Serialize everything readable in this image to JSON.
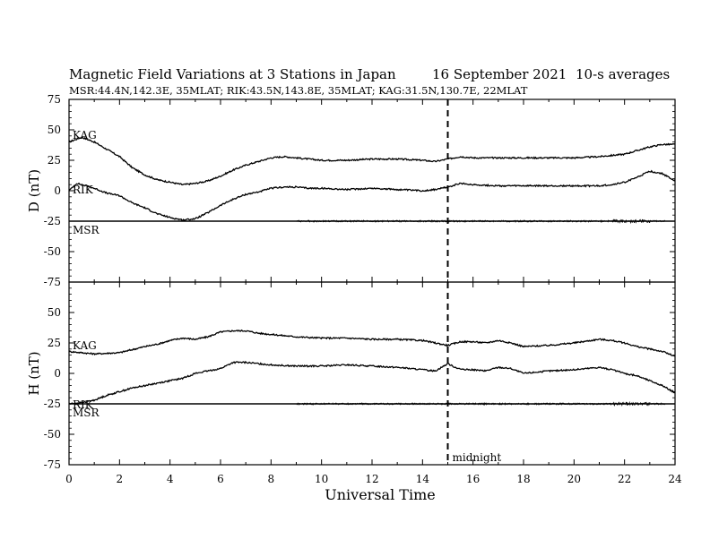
{
  "header": {
    "title": "Magnetic Field Variations at 3 Stations in Japan",
    "date": "16 September 2021",
    "averaging": "10-s averages",
    "stations": "MSR:44.4N,142.3E, 35MLAT;  RIK:43.5N,143.8E, 35MLAT;  KAG:31.5N,130.7E, 22MLAT"
  },
  "chart_data": [
    {
      "type": "line",
      "panel": "D",
      "ylabel": "D (nT)",
      "ylim": [
        -75,
        75
      ],
      "yticks": [
        -75,
        -50,
        -25,
        0,
        25,
        50,
        75
      ],
      "xlim": [
        0,
        24
      ],
      "series": [
        {
          "name": "KAG",
          "x": [
            0,
            0.5,
            1,
            1.5,
            2,
            2.5,
            3,
            3.5,
            4,
            4.5,
            5,
            5.5,
            6,
            6.5,
            7,
            7.5,
            8,
            8.5,
            9,
            9.5,
            10,
            11,
            12,
            13,
            14,
            14.5,
            15,
            15.5,
            16,
            17,
            18,
            19,
            20,
            21,
            21.5,
            22,
            22.5,
            23,
            23.5,
            24
          ],
          "y": [
            40,
            44,
            40,
            34,
            28,
            19,
            13,
            9,
            7,
            5,
            6,
            8,
            12,
            17,
            21,
            24,
            27,
            28,
            27,
            26,
            25,
            25,
            26,
            26,
            25,
            24,
            26,
            28,
            27,
            27,
            27,
            27,
            27,
            28,
            29,
            30,
            33,
            36,
            38,
            38
          ]
        },
        {
          "name": "RIK",
          "x": [
            0,
            0.3,
            0.7,
            1,
            1.5,
            2,
            2.5,
            3,
            3.5,
            4,
            4.5,
            5,
            5.5,
            6,
            6.5,
            7,
            7.5,
            8,
            8.5,
            9,
            9.5,
            10,
            11,
            12,
            13,
            14,
            14.5,
            15,
            15.5,
            16,
            17,
            18,
            19,
            20,
            21,
            21.5,
            22,
            22.5,
            23,
            23.5,
            24
          ],
          "y": [
            0,
            6,
            4,
            2,
            -2,
            -4,
            -10,
            -14,
            -19,
            -22,
            -24,
            -23,
            -18,
            -12,
            -7,
            -3,
            -1,
            2,
            3,
            3,
            2,
            2,
            1,
            2,
            1,
            0,
            1,
            3,
            6,
            5,
            4,
            4,
            4,
            4,
            4,
            5,
            7,
            11,
            16,
            14,
            8
          ]
        },
        {
          "name": "MSR",
          "x": [
            0,
            24
          ],
          "y": [
            -25,
            -25
          ]
        }
      ]
    },
    {
      "type": "line",
      "panel": "H",
      "ylabel": "H (nT)",
      "ylim": [
        -75,
        75
      ],
      "yticks": [
        -75,
        -50,
        -25,
        0,
        25,
        50,
        75
      ],
      "xlim": [
        0,
        24
      ],
      "xlabel": "Universal Time",
      "xticks": [
        0,
        2,
        4,
        6,
        8,
        10,
        12,
        14,
        16,
        18,
        20,
        22,
        24
      ],
      "series": [
        {
          "name": "KAG",
          "x": [
            0,
            0.5,
            1,
            2,
            3,
            3.5,
            4,
            4.5,
            5,
            5.5,
            6,
            6.5,
            7,
            7.5,
            8,
            9,
            10,
            11,
            12,
            13,
            14,
            14.5,
            15,
            15.5,
            16,
            16.5,
            17,
            17.5,
            18,
            19,
            20,
            21,
            21.5,
            22,
            22.5,
            23,
            23.5,
            24
          ],
          "y": [
            18,
            17,
            16,
            17,
            22,
            24,
            27,
            29,
            28,
            30,
            34,
            35,
            35,
            33,
            32,
            30,
            29,
            29,
            28,
            28,
            27,
            25,
            23,
            26,
            26,
            25,
            27,
            25,
            22,
            23,
            25,
            28,
            27,
            25,
            22,
            20,
            18,
            14
          ]
        },
        {
          "name": "RIK",
          "x": [
            0,
            0.5,
            1,
            1.5,
            2,
            2.5,
            3,
            3.5,
            4,
            4.5,
            5,
            5.5,
            6,
            6.5,
            7,
            8,
            9,
            10,
            11,
            12,
            13,
            14,
            14.5,
            15,
            15.3,
            15.6,
            16,
            16.5,
            17,
            17.5,
            18,
            19,
            20,
            21,
            21.5,
            22,
            22.5,
            23,
            23.5,
            24
          ],
          "y": [
            -25,
            -24,
            -22,
            -18,
            -15,
            -12,
            -10,
            -8,
            -6,
            -4,
            0,
            2,
            4,
            9,
            9,
            7,
            6,
            6,
            7,
            6,
            5,
            3,
            2,
            8,
            5,
            3,
            3,
            2,
            5,
            4,
            0,
            2,
            3,
            5,
            3,
            0,
            -2,
            -6,
            -10,
            -16
          ]
        },
        {
          "name": "MSR",
          "x": [
            0,
            24
          ],
          "y": [
            -25,
            -25
          ]
        }
      ]
    }
  ],
  "annotations": {
    "midnight_label": "midnight",
    "midnight_ut": 15
  }
}
